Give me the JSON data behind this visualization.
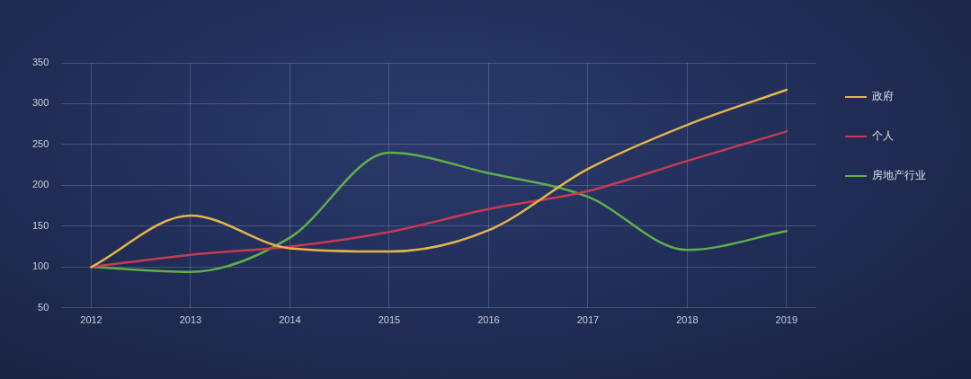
{
  "chart_data": {
    "type": "line",
    "categories": [
      "2012",
      "2013",
      "2014",
      "2015",
      "2016",
      "2017",
      "2018",
      "2019"
    ],
    "series": [
      {
        "name": "政府",
        "color": "#e6b54a",
        "values": [
          100,
          163,
          123,
          119,
          145,
          220,
          274,
          317
        ]
      },
      {
        "name": "个人",
        "color": "#c73a52",
        "values": [
          100,
          115,
          125,
          143,
          171,
          193,
          230,
          266
        ]
      },
      {
        "name": "房地产行业",
        "color": "#5fae4a",
        "values": [
          100,
          94,
          136,
          240,
          215,
          186,
          121,
          144
        ]
      }
    ],
    "ylim": [
      50,
      350
    ],
    "yticks": [
      50,
      100,
      150,
      200,
      250,
      300,
      350
    ],
    "grid": true,
    "legend": "right",
    "marker": "none",
    "line_style": "solid"
  }
}
